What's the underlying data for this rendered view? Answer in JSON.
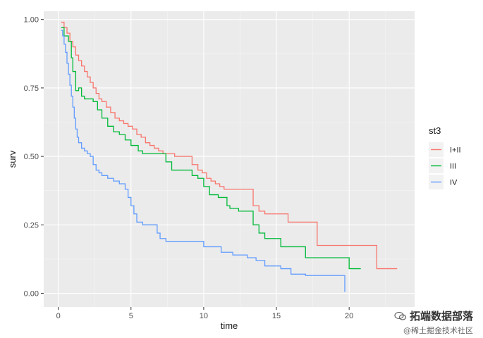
{
  "chart_data": {
    "type": "line",
    "step": true,
    "xlabel": "time",
    "ylabel": "surv",
    "xlim": [
      -1,
      24.5
    ],
    "ylim": [
      -0.05,
      1.03
    ],
    "xticks": [
      0,
      5,
      10,
      15,
      20
    ],
    "yticks": [
      0.0,
      0.25,
      0.5,
      0.75,
      1.0
    ],
    "xtick_labels": [
      "0",
      "5",
      "10",
      "15",
      "20"
    ],
    "ytick_labels": [
      "0.00",
      "0.25",
      "0.50",
      "0.75",
      "1.00"
    ],
    "grid": true,
    "legend": {
      "title": "st3",
      "position": "right"
    },
    "series": [
      {
        "name": "I+II",
        "color": "#F8766D",
        "x": [
          0.2,
          0.4,
          0.6,
          0.8,
          1.0,
          1.2,
          1.4,
          1.6,
          1.8,
          2.0,
          2.2,
          2.4,
          2.6,
          2.8,
          3.0,
          3.3,
          3.6,
          3.9,
          4.2,
          4.5,
          4.8,
          5.1,
          5.4,
          5.7,
          6.0,
          6.3,
          6.6,
          6.9,
          7.2,
          7.6,
          8.0,
          8.4,
          9.2,
          9.6,
          9.9,
          10.2,
          10.5,
          10.8,
          11.1,
          11.4,
          11.8,
          12.2,
          13.4,
          13.8,
          14.2,
          15.8,
          17.8,
          21.9,
          23.3
        ],
        "y": [
          0.99,
          0.97,
          0.95,
          0.92,
          0.9,
          0.87,
          0.85,
          0.83,
          0.81,
          0.79,
          0.77,
          0.75,
          0.73,
          0.71,
          0.7,
          0.68,
          0.66,
          0.64,
          0.63,
          0.62,
          0.61,
          0.6,
          0.58,
          0.57,
          0.55,
          0.54,
          0.53,
          0.52,
          0.51,
          0.51,
          0.5,
          0.5,
          0.47,
          0.45,
          0.44,
          0.42,
          0.41,
          0.4,
          0.39,
          0.38,
          0.38,
          0.38,
          0.32,
          0.3,
          0.29,
          0.26,
          0.175,
          0.09,
          0.09
        ]
      },
      {
        "name": "III",
        "color": "#00BA38",
        "x": [
          0.2,
          0.4,
          0.7,
          0.9,
          1.0,
          1.2,
          1.4,
          1.6,
          1.8,
          2.4,
          2.7,
          3.0,
          3.4,
          3.8,
          4.2,
          4.6,
          5.0,
          5.5,
          5.8,
          6.2,
          6.6,
          7.4,
          7.8,
          9.2,
          9.6,
          10.0,
          10.4,
          11.0,
          11.6,
          11.8,
          12.4,
          13.4,
          13.8,
          14.2,
          15.3,
          17.0,
          18.4,
          20.0,
          20.8
        ],
        "y": [
          0.97,
          0.94,
          0.92,
          0.86,
          0.81,
          0.74,
          0.75,
          0.72,
          0.71,
          0.7,
          0.67,
          0.64,
          0.61,
          0.59,
          0.58,
          0.56,
          0.54,
          0.52,
          0.51,
          0.51,
          0.51,
          0.48,
          0.45,
          0.43,
          0.42,
          0.39,
          0.36,
          0.35,
          0.32,
          0.31,
          0.3,
          0.25,
          0.22,
          0.2,
          0.17,
          0.13,
          0.13,
          0.09,
          0.09
        ]
      },
      {
        "name": "IV",
        "color": "#619CFF",
        "x": [
          0.2,
          0.3,
          0.4,
          0.5,
          0.6,
          0.7,
          0.8,
          0.9,
          1.0,
          1.1,
          1.2,
          1.3,
          1.4,
          1.6,
          1.8,
          2.0,
          2.2,
          2.4,
          2.6,
          2.8,
          3.0,
          3.4,
          3.8,
          4.2,
          4.6,
          4.8,
          5.0,
          5.2,
          5.4,
          5.8,
          6.2,
          6.8,
          7.0,
          7.4,
          8.0,
          8.6,
          9.0,
          9.4,
          10.0,
          10.6,
          11.2,
          12.0,
          13.0,
          13.6,
          14.2,
          15.3,
          16.0,
          17.0,
          18.0,
          19.7
        ],
        "y": [
          0.96,
          0.94,
          0.91,
          0.88,
          0.84,
          0.8,
          0.76,
          0.72,
          0.68,
          0.64,
          0.6,
          0.57,
          0.55,
          0.53,
          0.52,
          0.51,
          0.5,
          0.47,
          0.45,
          0.44,
          0.43,
          0.42,
          0.41,
          0.4,
          0.38,
          0.35,
          0.32,
          0.29,
          0.26,
          0.25,
          0.25,
          0.22,
          0.2,
          0.19,
          0.19,
          0.19,
          0.19,
          0.19,
          0.17,
          0.17,
          0.15,
          0.14,
          0.13,
          0.12,
          0.1,
          0.09,
          0.07,
          0.065,
          0.065,
          0.005
        ]
      }
    ]
  },
  "watermark": {
    "line1": "拓端数据部落",
    "line2": "@稀土掘金技术社区"
  }
}
